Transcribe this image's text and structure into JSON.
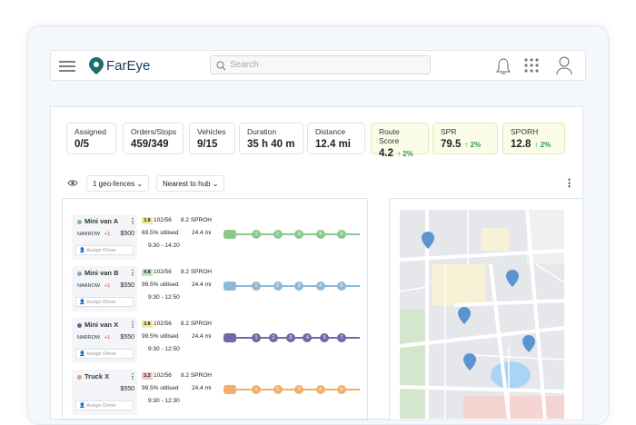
{
  "header": {
    "logo": "FarEye",
    "search_placeholder": "Search"
  },
  "stats": [
    {
      "label": "Assigned",
      "value": "0/5"
    },
    {
      "label": "Orders/Stops",
      "value": "459/349"
    },
    {
      "label": "Vehicles",
      "value": "9/15"
    },
    {
      "label": "Duration",
      "value": "35 h 40 m"
    },
    {
      "label": "Distance",
      "value": "12.4 mi"
    },
    {
      "label": "Route Score",
      "value": "4.2",
      "change": "2%"
    },
    {
      "label": "SPR",
      "value": "79.5",
      "change": "2%"
    },
    {
      "label": "SPORH",
      "value": "12.8",
      "change": "2%"
    }
  ],
  "filters": [
    "1 geo-fences",
    "Nearest to hub"
  ],
  "routes": [
    {
      "name": "Mini van A",
      "color": "#8cc88c",
      "dot": "#7bbf7b",
      "score": "3.8",
      "score_color": "#f3ec9a",
      "load": "102/56",
      "sproh": "8.2 SPROH",
      "tag": "NARROW",
      "extra": "+1",
      "price": "$500",
      "utilised": "69.5% utilised",
      "distance": "24.4 mi",
      "time": "9:30 - 14:20",
      "assign": "Assign Driver",
      "stops": [
        "1",
        "2",
        "3",
        "4",
        "5"
      ]
    },
    {
      "name": "Mini van B",
      "color": "#8fb8d6",
      "dot": "#7aaad0",
      "score": "4.8",
      "score_color": "#bfe6bf",
      "load": "102/56",
      "sproh": "8.2 SPROH",
      "tag": "NARROW",
      "extra": "+1",
      "price": "$550",
      "utilised": "99.5% utilised",
      "distance": "24.4 mi",
      "time": "9:30 - 12:50",
      "assign": "Assign Driver",
      "stops": [
        "1",
        "2",
        "3",
        "4",
        "5"
      ]
    },
    {
      "name": "Mini van X",
      "color": "#7567a6",
      "dot": "#6a5c9e",
      "score": "3.8",
      "score_color": "#f3ec9a",
      "load": "102/56",
      "sproh": "8.2 SPROH",
      "tag": "NARROW",
      "extra": "+1",
      "price": "$550",
      "utilised": "99.5% utilised",
      "distance": "24.4 mi",
      "time": "9:30 - 12:50",
      "assign": "Assign Driver",
      "stops": [
        "1",
        "2",
        "3",
        "4",
        "5",
        "7"
      ]
    },
    {
      "name": "Truck X",
      "color": "#efb06c",
      "dot": "#f0a060",
      "score": "3.2",
      "score_color": "#f6c6c6",
      "load": "102/56",
      "sproh": "8.2 SPROH",
      "price": "$550",
      "utilised": "99.5% utilised",
      "distance": "24.4 mi",
      "time": "9:30 - 12:30",
      "assign": "Assign Driver",
      "stops": [
        "1",
        "2",
        "3",
        "4",
        "5"
      ]
    }
  ]
}
